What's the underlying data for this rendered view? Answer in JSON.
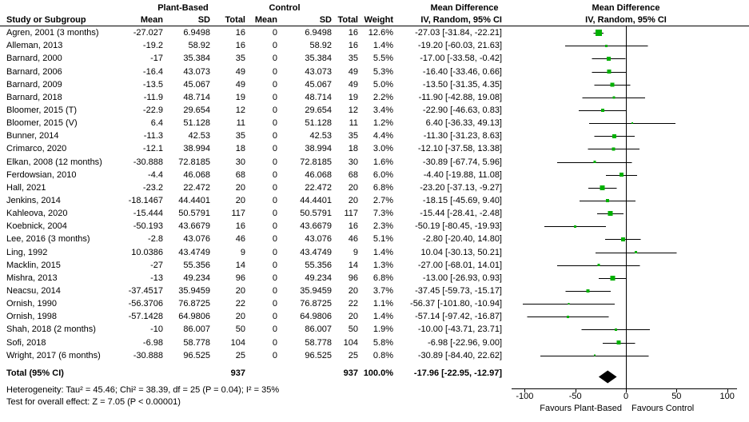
{
  "header": {
    "study_col": "Study or Subgroup",
    "group1": "Plant-Based",
    "group2": "Control",
    "mean": "Mean",
    "sd": "SD",
    "total": "Total",
    "weight": "Weight",
    "md_title": "Mean Difference",
    "md_subtitle": "IV, Random, 95% CI",
    "plot_title": "Mean Difference",
    "plot_subtitle": "IV, Random, 95% CI"
  },
  "chart_data": {
    "type": "forest",
    "effect_measure": "Mean Difference",
    "model": "IV, Random, 95% CI",
    "marker_color": "#00b000",
    "axis": {
      "min": -100,
      "max": 100,
      "ticks": [
        -100,
        -50,
        0,
        50,
        100
      ],
      "favours_left": "Favours Plant-Based",
      "favours_right": "Favours Control"
    },
    "studies": [
      {
        "name": "Agren, 2001 (3 months)",
        "pb_mean": "-27.027",
        "pb_sd": "6.9498",
        "pb_total": "16",
        "c_mean": "0",
        "c_sd": "6.9498",
        "c_total": "16",
        "weight": "12.6%",
        "md_ci": "-27.03 [-31.84, -22.21]",
        "est": -27.03,
        "lo": -31.84,
        "hi": -22.21,
        "w": 12.6
      },
      {
        "name": "Alleman, 2013",
        "pb_mean": "-19.2",
        "pb_sd": "58.92",
        "pb_total": "16",
        "c_mean": "0",
        "c_sd": "58.92",
        "c_total": "16",
        "weight": "1.4%",
        "md_ci": "-19.20 [-60.03, 21.63]",
        "est": -19.2,
        "lo": -60.03,
        "hi": 21.63,
        "w": 1.4
      },
      {
        "name": "Barnard, 2000",
        "pb_mean": "-17",
        "pb_sd": "35.384",
        "pb_total": "35",
        "c_mean": "0",
        "c_sd": "35.384",
        "c_total": "35",
        "weight": "5.5%",
        "md_ci": "-17.00 [-33.58, -0.42]",
        "est": -17.0,
        "lo": -33.58,
        "hi": -0.42,
        "w": 5.5
      },
      {
        "name": "Barnard, 2006",
        "pb_mean": "-16.4",
        "pb_sd": "43.073",
        "pb_total": "49",
        "c_mean": "0",
        "c_sd": "43.073",
        "c_total": "49",
        "weight": "5.3%",
        "md_ci": "-16.40 [-33.46, 0.66]",
        "est": -16.4,
        "lo": -33.46,
        "hi": 0.66,
        "w": 5.3
      },
      {
        "name": "Barnard, 2009",
        "pb_mean": "-13.5",
        "pb_sd": "45.067",
        "pb_total": "49",
        "c_mean": "0",
        "c_sd": "45.067",
        "c_total": "49",
        "weight": "5.0%",
        "md_ci": "-13.50 [-31.35, 4.35]",
        "est": -13.5,
        "lo": -31.35,
        "hi": 4.35,
        "w": 5.0
      },
      {
        "name": "Barnard, 2018",
        "pb_mean": "-11.9",
        "pb_sd": "48.714",
        "pb_total": "19",
        "c_mean": "0",
        "c_sd": "48.714",
        "c_total": "19",
        "weight": "2.2%",
        "md_ci": "-11.90 [-42.88, 19.08]",
        "est": -11.9,
        "lo": -42.88,
        "hi": 19.08,
        "w": 2.2
      },
      {
        "name": "Bloomer, 2015 (T)",
        "pb_mean": "-22.9",
        "pb_sd": "29.654",
        "pb_total": "12",
        "c_mean": "0",
        "c_sd": "29.654",
        "c_total": "12",
        "weight": "3.4%",
        "md_ci": "-22.90 [-46.63, 0.83]",
        "est": -22.9,
        "lo": -46.63,
        "hi": 0.83,
        "w": 3.4
      },
      {
        "name": "Bloomer, 2015 (V)",
        "pb_mean": "6.4",
        "pb_sd": "51.128",
        "pb_total": "11",
        "c_mean": "0",
        "c_sd": "51.128",
        "c_total": "11",
        "weight": "1.2%",
        "md_ci": "6.40 [-36.33, 49.13]",
        "est": 6.4,
        "lo": -36.33,
        "hi": 49.13,
        "w": 1.2
      },
      {
        "name": "Bunner, 2014",
        "pb_mean": "-11.3",
        "pb_sd": "42.53",
        "pb_total": "35",
        "c_mean": "0",
        "c_sd": "42.53",
        "c_total": "35",
        "weight": "4.4%",
        "md_ci": "-11.30 [-31.23, 8.63]",
        "est": -11.3,
        "lo": -31.23,
        "hi": 8.63,
        "w": 4.4
      },
      {
        "name": "Crimarco, 2020",
        "pb_mean": "-12.1",
        "pb_sd": "38.994",
        "pb_total": "18",
        "c_mean": "0",
        "c_sd": "38.994",
        "c_total": "18",
        "weight": "3.0%",
        "md_ci": "-12.10 [-37.58, 13.38]",
        "est": -12.1,
        "lo": -37.58,
        "hi": 13.38,
        "w": 3.0
      },
      {
        "name": "Elkan, 2008 (12 months)",
        "pb_mean": "-30.888",
        "pb_sd": "72.8185",
        "pb_total": "30",
        "c_mean": "0",
        "c_sd": "72.8185",
        "c_total": "30",
        "weight": "1.6%",
        "md_ci": "-30.89 [-67.74, 5.96]",
        "est": -30.89,
        "lo": -67.74,
        "hi": 5.96,
        "w": 1.6
      },
      {
        "name": "Ferdowsian, 2010",
        "pb_mean": "-4.4",
        "pb_sd": "46.068",
        "pb_total": "68",
        "c_mean": "0",
        "c_sd": "46.068",
        "c_total": "68",
        "weight": "6.0%",
        "md_ci": "-4.40 [-19.88, 11.08]",
        "est": -4.4,
        "lo": -19.88,
        "hi": 11.08,
        "w": 6.0
      },
      {
        "name": "Hall, 2021",
        "pb_mean": "-23.2",
        "pb_sd": "22.472",
        "pb_total": "20",
        "c_mean": "0",
        "c_sd": "22.472",
        "c_total": "20",
        "weight": "6.8%",
        "md_ci": "-23.20 [-37.13, -9.27]",
        "est": -23.2,
        "lo": -37.13,
        "hi": -9.27,
        "w": 6.8
      },
      {
        "name": "Jenkins, 2014",
        "pb_mean": "-18.1467",
        "pb_sd": "44.4401",
        "pb_total": "20",
        "c_mean": "0",
        "c_sd": "44.4401",
        "c_total": "20",
        "weight": "2.7%",
        "md_ci": "-18.15 [-45.69, 9.40]",
        "est": -18.15,
        "lo": -45.69,
        "hi": 9.4,
        "w": 2.7
      },
      {
        "name": "Kahleova, 2020",
        "pb_mean": "-15.444",
        "pb_sd": "50.5791",
        "pb_total": "117",
        "c_mean": "0",
        "c_sd": "50.5791",
        "c_total": "117",
        "weight": "7.3%",
        "md_ci": "-15.44 [-28.41, -2.48]",
        "est": -15.44,
        "lo": -28.41,
        "hi": -2.48,
        "w": 7.3
      },
      {
        "name": "Koebnick, 2004",
        "pb_mean": "-50.193",
        "pb_sd": "43.6679",
        "pb_total": "16",
        "c_mean": "0",
        "c_sd": "43.6679",
        "c_total": "16",
        "weight": "2.3%",
        "md_ci": "-50.19 [-80.45, -19.93]",
        "est": -50.19,
        "lo": -80.45,
        "hi": -19.93,
        "w": 2.3
      },
      {
        "name": "Lee, 2016 (3 months)",
        "pb_mean": "-2.8",
        "pb_sd": "43.076",
        "pb_total": "46",
        "c_mean": "0",
        "c_sd": "43.076",
        "c_total": "46",
        "weight": "5.1%",
        "md_ci": "-2.80 [-20.40, 14.80]",
        "est": -2.8,
        "lo": -20.4,
        "hi": 14.8,
        "w": 5.1
      },
      {
        "name": "Ling, 1992",
        "pb_mean": "10.0386",
        "pb_sd": "43.4749",
        "pb_total": "9",
        "c_mean": "0",
        "c_sd": "43.4749",
        "c_total": "9",
        "weight": "1.4%",
        "md_ci": "10.04 [-30.13, 50.21]",
        "est": 10.04,
        "lo": -30.13,
        "hi": 50.21,
        "w": 1.4
      },
      {
        "name": "Macklin, 2015",
        "pb_mean": "-27",
        "pb_sd": "55.356",
        "pb_total": "14",
        "c_mean": "0",
        "c_sd": "55.356",
        "c_total": "14",
        "weight": "1.3%",
        "md_ci": "-27.00 [-68.01, 14.01]",
        "est": -27.0,
        "lo": -68.01,
        "hi": 14.01,
        "w": 1.3
      },
      {
        "name": "Mishra, 2013",
        "pb_mean": "-13",
        "pb_sd": "49.234",
        "pb_total": "96",
        "c_mean": "0",
        "c_sd": "49.234",
        "c_total": "96",
        "weight": "6.8%",
        "md_ci": "-13.00 [-26.93, 0.93]",
        "est": -13.0,
        "lo": -26.93,
        "hi": 0.93,
        "w": 6.8
      },
      {
        "name": "Neacsu, 2014",
        "pb_mean": "-37.4517",
        "pb_sd": "35.9459",
        "pb_total": "20",
        "c_mean": "0",
        "c_sd": "35.9459",
        "c_total": "20",
        "weight": "3.7%",
        "md_ci": "-37.45 [-59.73, -15.17]",
        "est": -37.45,
        "lo": -59.73,
        "hi": -15.17,
        "w": 3.7
      },
      {
        "name": "Ornish, 1990",
        "pb_mean": "-56.3706",
        "pb_sd": "76.8725",
        "pb_total": "22",
        "c_mean": "0",
        "c_sd": "76.8725",
        "c_total": "22",
        "weight": "1.1%",
        "md_ci": "-56.37 [-101.80, -10.94]",
        "est": -56.37,
        "lo": -101.8,
        "hi": -10.94,
        "w": 1.1
      },
      {
        "name": "Ornish, 1998",
        "pb_mean": "-57.1428",
        "pb_sd": "64.9806",
        "pb_total": "20",
        "c_mean": "0",
        "c_sd": "64.9806",
        "c_total": "20",
        "weight": "1.4%",
        "md_ci": "-57.14 [-97.42, -16.87]",
        "est": -57.14,
        "lo": -97.42,
        "hi": -16.87,
        "w": 1.4
      },
      {
        "name": "Shah, 2018 (2 months)",
        "pb_mean": "-10",
        "pb_sd": "86.007",
        "pb_total": "50",
        "c_mean": "0",
        "c_sd": "86.007",
        "c_total": "50",
        "weight": "1.9%",
        "md_ci": "-10.00 [-43.71, 23.71]",
        "est": -10.0,
        "lo": -43.71,
        "hi": 23.71,
        "w": 1.9
      },
      {
        "name": "Sofi, 2018",
        "pb_mean": "-6.98",
        "pb_sd": "58.778",
        "pb_total": "104",
        "c_mean": "0",
        "c_sd": "58.778",
        "c_total": "104",
        "weight": "5.8%",
        "md_ci": "-6.98 [-22.96, 9.00]",
        "est": -6.98,
        "lo": -22.96,
        "hi": 9.0,
        "w": 5.8
      },
      {
        "name": "Wright, 2017 (6 months)",
        "pb_mean": "-30.888",
        "pb_sd": "96.525",
        "pb_total": "25",
        "c_mean": "0",
        "c_sd": "96.525",
        "c_total": "25",
        "weight": "0.8%",
        "md_ci": "-30.89 [-84.40, 22.62]",
        "est": -30.89,
        "lo": -84.4,
        "hi": 22.62,
        "w": 0.8
      }
    ],
    "total": {
      "label": "Total (95% CI)",
      "pb_total": "937",
      "c_total": "937",
      "weight": "100.0%",
      "md_ci": "-17.96 [-22.95, -12.97]",
      "est": -17.96,
      "lo": -22.95,
      "hi": -12.97
    },
    "heterogeneity": "Heterogeneity: Tau² = 45.46; Chi² = 38.39, df = 25 (P = 0.04); I² = 35%",
    "overall_effect": "Test for overall effect: Z = 7.05 (P < 0.00001)"
  }
}
